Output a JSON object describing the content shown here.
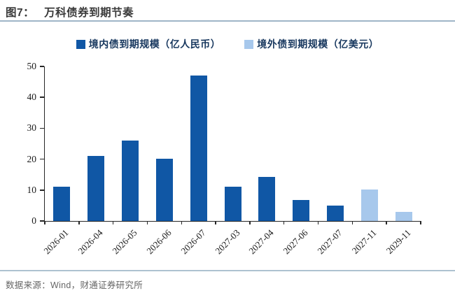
{
  "header": {
    "figure_label": "图7：",
    "title": "万科债券到期节奏"
  },
  "legend": [
    {
      "label": "境内债到期规模（亿人民币）",
      "color": "#1057a5"
    },
    {
      "label": "境外债到期规模（亿美元）",
      "color": "#a7c8ec"
    }
  ],
  "chart_data": {
    "type": "bar",
    "title": "万科债券到期节奏",
    "categories": [
      "2026-01",
      "2026-04",
      "2026-05",
      "2026-06",
      "2026-07",
      "2027-03",
      "2027-04",
      "2027-06",
      "2027-07",
      "2027-11",
      "2029-11"
    ],
    "series": [
      {
        "name": "境内债到期规模（亿人民币）",
        "color": "#1057a5",
        "values": [
          11.2,
          21,
          26,
          20.2,
          47,
          11.2,
          14.3,
          6.8,
          5,
          null,
          null
        ]
      },
      {
        "name": "境外债到期规模（亿美元）",
        "color": "#a7c8ec",
        "values": [
          null,
          null,
          null,
          null,
          null,
          null,
          null,
          null,
          null,
          10.2,
          3
        ]
      }
    ],
    "xlabel": "",
    "ylabel": "",
    "ylim": [
      0,
      50
    ],
    "yticks": [
      0,
      10,
      20,
      30,
      40,
      50
    ],
    "grid": false,
    "legend_position": "top-center",
    "x_tick_rotation": 45
  },
  "footer": {
    "source": "数据来源：Wind，财通证券研究所"
  }
}
